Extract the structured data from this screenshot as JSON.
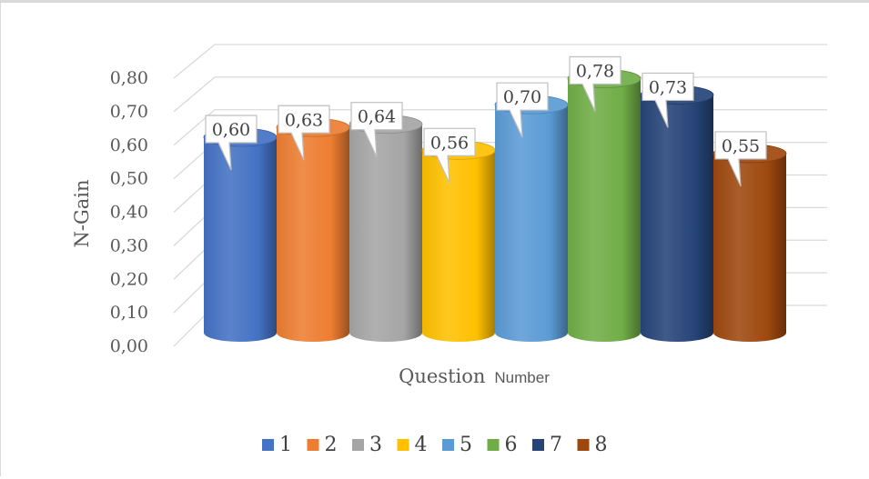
{
  "chart_data": {
    "type": "bar",
    "style": "3d-cylinder",
    "categories": [
      "1",
      "2",
      "3",
      "4",
      "5",
      "6",
      "7",
      "8"
    ],
    "values": [
      0.6,
      0.63,
      0.64,
      0.56,
      0.7,
      0.78,
      0.73,
      0.55
    ],
    "data_labels": [
      "0,60",
      "0,63",
      "0,64",
      "0,56",
      "0,70",
      "0,78",
      "0,73",
      "0,55"
    ],
    "colors": [
      "#4472C4",
      "#ED7D31",
      "#A5A5A5",
      "#FFC000",
      "#5B9BD5",
      "#70AD47",
      "#264478",
      "#9E480E"
    ],
    "ylabel": "N-Gain",
    "xlabel_main": "Question",
    "xlabel_tail": "Number",
    "ylim": [
      0,
      0.8
    ],
    "yticks": [
      "0,00",
      "0,10",
      "0,20",
      "0,30",
      "0,40",
      "0,50",
      "0,60",
      "0,70",
      "0,80"
    ],
    "grid": true,
    "legend_position": "bottom"
  }
}
